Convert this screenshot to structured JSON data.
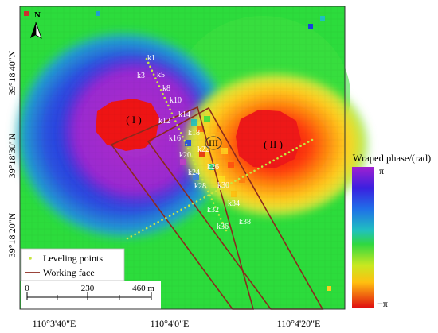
{
  "map": {
    "north_label": "N",
    "latitude_labels": [
      "39°18'40\"N",
      "39°18'30\"N",
      "39°18'20\"N"
    ],
    "longitude_labels": [
      "110°3'40\"E",
      "110°4'0\"E",
      "110°4'20\"E"
    ],
    "region_labels": [
      "( I )",
      "( II )",
      "III"
    ],
    "leveling_points": [
      "k1",
      "k3",
      "k5",
      "k8",
      "k10",
      "k12",
      "k14",
      "k16",
      "k18",
      "k20",
      "k22",
      "k24",
      "k26",
      "k28",
      "k30",
      "k32",
      "k34",
      "k36",
      "k38"
    ]
  },
  "legend": {
    "leveling_label": "Leveling points",
    "working_face_label": "Working face",
    "leveling_color": "#c8e641",
    "working_face_color": "#8b2a1e"
  },
  "scale_bar": {
    "ticks": [
      "0",
      "230",
      "460 m"
    ]
  },
  "colorbar": {
    "title": "Wraped phase/(rad)",
    "max_label": "π",
    "min_label": "−π"
  }
}
